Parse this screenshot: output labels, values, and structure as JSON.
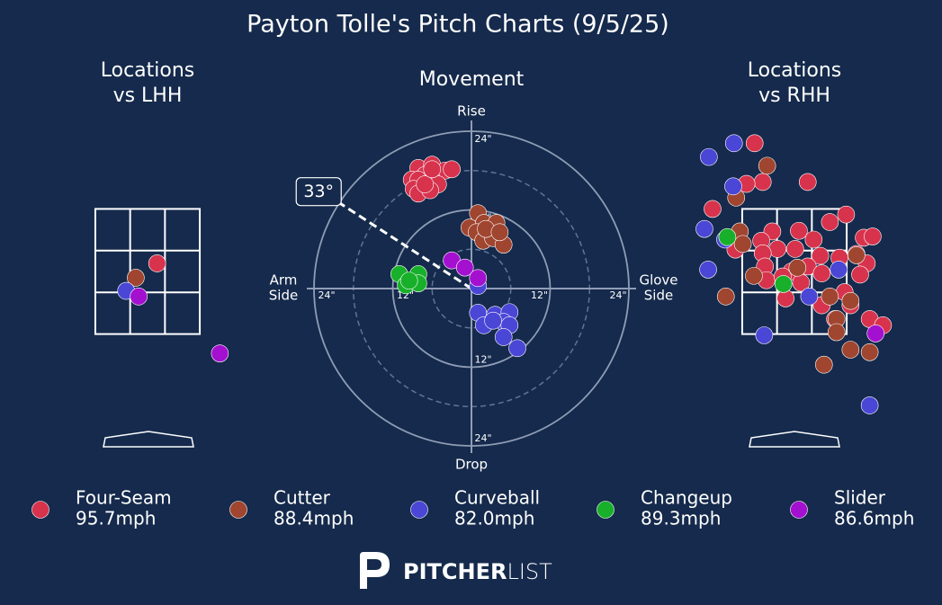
{
  "title": "Payton Tolle's Pitch Charts (9/5/25)",
  "legend": [
    {
      "name": "Four-Seam",
      "speed": "95.7mph",
      "color": "#d7334d"
    },
    {
      "name": "Cutter",
      "speed": "88.4mph",
      "color": "#a0452f"
    },
    {
      "name": "Curveball",
      "speed": "82.0mph",
      "color": "#4a46d6"
    },
    {
      "name": "Changeup",
      "speed": "89.3mph",
      "color": "#18b02a"
    },
    {
      "name": "Slider",
      "speed": "86.6mph",
      "color": "#a410d0"
    }
  ],
  "logo": {
    "bold": "PITCHER",
    "light": "LIST"
  },
  "chart_data": [
    {
      "type": "scatter",
      "title": [
        "Locations",
        "vs LHH"
      ],
      "xlim": [
        -1.5,
        1.5
      ],
      "ylim": [
        0,
        5
      ],
      "series": [
        {
          "color": "#d7334d",
          "x": [
            0.13
          ],
          "values": [
            2.63
          ]
        },
        {
          "color": "#a0452f",
          "x": [
            -0.16
          ],
          "values": [
            2.4
          ]
        },
        {
          "color": "#4a46d6",
          "x": [
            -0.29
          ],
          "values": [
            2.19
          ]
        },
        {
          "color": "#a410d0",
          "x": [
            -0.12,
            0.98
          ],
          "values": [
            2.1,
            1.19
          ]
        }
      ]
    },
    {
      "type": "polar",
      "title": "Movement",
      "rlim": [
        0,
        24
      ],
      "rticks": [
        {
          "value": 12,
          "label": "12\""
        },
        {
          "value": 24,
          "label": "24\""
        }
      ],
      "minor_rticks": [
        6,
        18
      ],
      "labels": {
        "top": [
          "Rise"
        ],
        "bottom": [
          "Drop"
        ],
        "left": [
          "Arm",
          "Side"
        ],
        "right": [
          "Glove",
          "Side"
        ]
      },
      "arm_angle": {
        "value": 33,
        "label": "33°"
      },
      "series": [
        {
          "color": "#d7334d",
          "x": [
            -8.1,
            -6.0,
            -4.0,
            -3.0,
            -7.1,
            -9.1,
            -8.1,
            -6.0,
            -5.1,
            -8.8,
            -8.1,
            -6.3,
            -7.1,
            -6.0
          ],
          "values": [
            18.4,
            18.9,
            18.0,
            18.2,
            17.3,
            16.6,
            16.6,
            16.6,
            15.9,
            15.2,
            14.5,
            15.0,
            15.9,
            18.2
          ]
        },
        {
          "color": "#a0452f",
          "x": [
            1.0,
            -0.3,
            1.9,
            3.8,
            0.8,
            2.9,
            1.8,
            3.3,
            4.9,
            2.2,
            4.3
          ],
          "values": [
            11.5,
            9.3,
            10.0,
            10.0,
            8.6,
            8.4,
            7.3,
            7.7,
            6.7,
            9.1,
            8.6
          ]
        },
        {
          "color": "#4a46d6",
          "x": [
            1.0,
            1.0,
            3.6,
            5.8,
            4.9,
            1.9,
            3.3,
            5.8,
            4.9,
            7.0
          ],
          "values": [
            0.4,
            -3.7,
            -4.0,
            -3.6,
            -5.1,
            -5.6,
            -4.9,
            -5.6,
            -7.4,
            -9.1
          ]
        },
        {
          "color": "#18b02a",
          "x": [
            -11.0,
            -10.0,
            -8.1,
            -8.1,
            -9.5
          ],
          "values": [
            2.2,
            0.5,
            2.2,
            0.8,
            1.2
          ]
        },
        {
          "color": "#a410d0",
          "x": [
            -3.0,
            -1.0,
            1.0
          ],
          "values": [
            4.3,
            3.2,
            1.6
          ]
        }
      ]
    },
    {
      "type": "scatter",
      "title": [
        "Locations",
        "vs RHH"
      ],
      "xlim": [
        -1.5,
        1.5
      ],
      "ylim": [
        0,
        5
      ],
      "series": [
        {
          "color": "#d7334d",
          "x": [
            -0.54,
            0.18,
            -0.43,
            -0.65,
            -1.11,
            0.7,
            0.48,
            -0.3,
            0.06,
            0.26,
            -0.45,
            0.94,
            1.06,
            -0.23,
            0.01,
            0.35,
            0.61,
            0.84,
            0.98,
            -0.43,
            -0.8,
            -0.4,
            -0.04,
            0.18,
            0.37,
            0.89,
            -0.38,
            -0.16,
            0.09,
            -0.12,
            0.37,
            0.76,
            0.55,
            1.02,
            1.2,
            0.68
          ],
          "values": [
            4.55,
            3.93,
            3.93,
            3.9,
            3.5,
            3.41,
            3.29,
            3.14,
            3.15,
            3.01,
            2.99,
            3.04,
            3.06,
            2.86,
            2.86,
            2.75,
            2.72,
            2.78,
            2.63,
            2.79,
            2.85,
            2.58,
            2.5,
            2.58,
            2.47,
            2.45,
            2.36,
            2.42,
            2.32,
            2.07,
            1.96,
            1.96,
            1.74,
            1.74,
            1.64,
            2.17
          ]
        },
        {
          "color": "#a0452f",
          "x": [
            -0.37,
            -0.79,
            -0.74,
            -0.7,
            0.04,
            -0.55,
            -0.93,
            0.48,
            0.76,
            0.57,
            0.57,
            0.4,
            0.76,
            1.02,
            0.84
          ],
          "values": [
            4.19,
            3.68,
            3.14,
            2.94,
            2.56,
            2.43,
            2.1,
            2.1,
            2.03,
            1.74,
            1.53,
            1.01,
            1.25,
            1.21,
            2.76
          ]
        },
        {
          "color": "#4a46d6",
          "x": [
            -1.16,
            -0.82,
            -0.83,
            -1.22,
            -0.94,
            -1.17,
            0.6,
            0.2,
            -0.41,
            1.02
          ],
          "values": [
            4.33,
            4.55,
            3.86,
            3.18,
            3.01,
            2.53,
            2.53,
            2.1,
            1.48,
            0.36
          ]
        },
        {
          "color": "#18b02a",
          "x": [
            -0.91,
            -0.15
          ],
          "values": [
            3.05,
            2.3
          ]
        },
        {
          "color": "#a410d0",
          "x": [
            1.1
          ],
          "values": [
            1.51
          ]
        }
      ]
    }
  ]
}
